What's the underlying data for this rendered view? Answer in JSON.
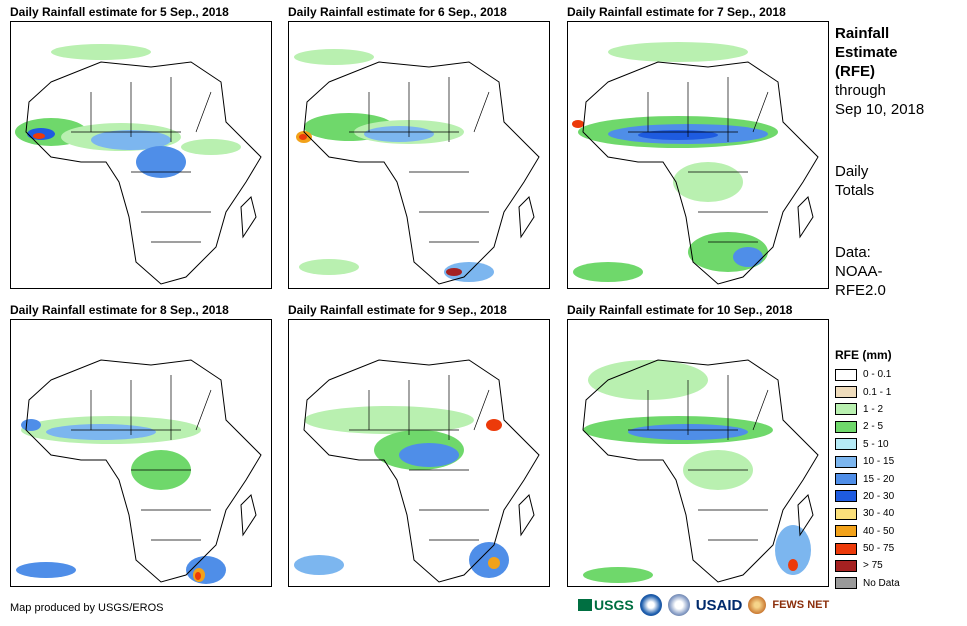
{
  "panels": [
    {
      "title": "Daily Rainfall estimate for 5 Sep., 2018"
    },
    {
      "title": "Daily Rainfall estimate for 6 Sep., 2018"
    },
    {
      "title": "Daily Rainfall estimate for 7 Sep., 2018"
    },
    {
      "title": "Daily Rainfall estimate for 8 Sep., 2018"
    },
    {
      "title": "Daily Rainfall estimate for 9 Sep., 2018"
    },
    {
      "title": "Daily Rainfall estimate for 10 Sep., 2018"
    }
  ],
  "sidebar": {
    "title_line1": "Rainfall",
    "title_line2": "Estimate",
    "title_line3": "(RFE)",
    "through": "through",
    "date": "Sep 10, 2018",
    "daily": "Daily",
    "totals": "Totals",
    "data_label": "Data:",
    "source1": "NOAA-",
    "source2": "RFE2.0"
  },
  "legend": {
    "title": "RFE (mm)",
    "items": [
      {
        "label": "0 - 0.1",
        "color": "#ffffff"
      },
      {
        "label": "0.1 - 1",
        "color": "#efdcbc"
      },
      {
        "label": "1 - 2",
        "color": "#b9f0b0"
      },
      {
        "label": "2 - 5",
        "color": "#6fd86b"
      },
      {
        "label": "5 - 10",
        "color": "#b5eaf6"
      },
      {
        "label": "10 - 15",
        "color": "#7cb6ef"
      },
      {
        "label": "15 - 20",
        "color": "#4f8ee8"
      },
      {
        "label": "20 - 30",
        "color": "#1e5be0"
      },
      {
        "label": "30 - 40",
        "color": "#fbe07a"
      },
      {
        "label": "40 - 50",
        "color": "#f2a21a"
      },
      {
        "label": "50 - 75",
        "color": "#ec3a0a"
      },
      {
        "label": "> 75",
        "color": "#a52121"
      },
      {
        "label": "No Data",
        "color": "#9a9a9a"
      }
    ]
  },
  "footer": {
    "credit": "Map produced by USGS/EROS",
    "logo_usgs": "USGS",
    "logo_usaid": "USAID",
    "logo_fews": "FEWS NET"
  }
}
